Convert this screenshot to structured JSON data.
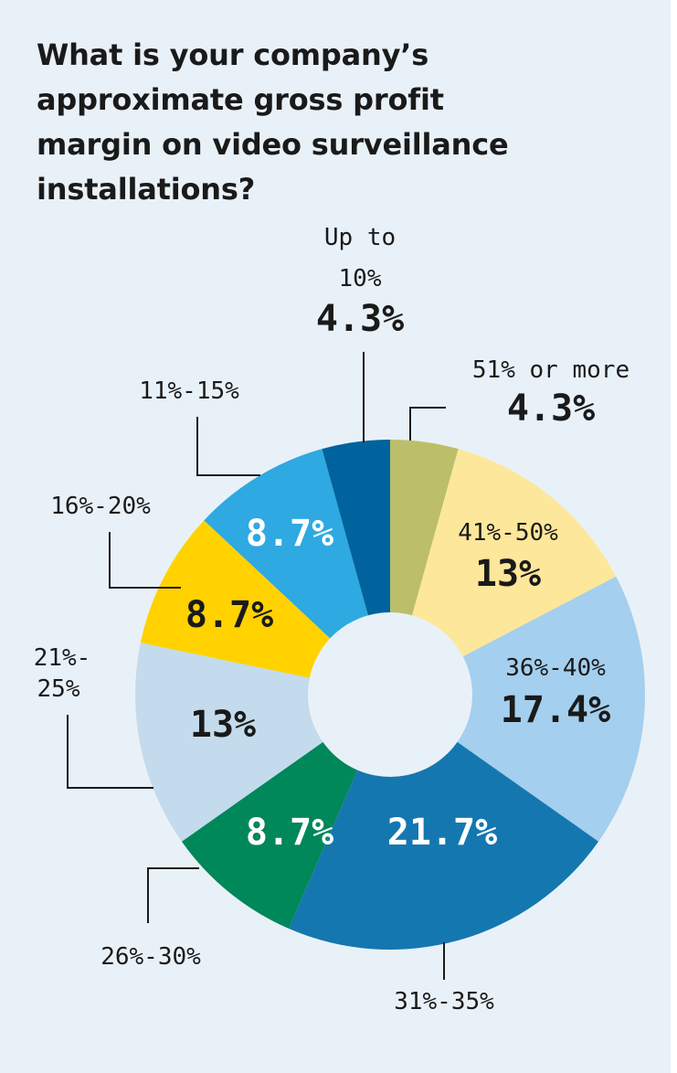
{
  "title": "What is your company’s\napproximate gross profit\nmargin on video surveillance\ninstallations?",
  "colors": {
    "background": "#e9f1f8",
    "text_dark": "#1a1a1a",
    "text_light": "#ffffff"
  },
  "chart_data": {
    "type": "pie",
    "donut": true,
    "title": "What is your company’s approximate gross profit margin on video surveillance installations?",
    "unit": "%",
    "slices": [
      {
        "label": "51% or more",
        "value": 4.3,
        "value_label": "4.3%",
        "color": "#bcbe6a"
      },
      {
        "label": "41%-50%",
        "value": 13,
        "value_label": "13%",
        "color": "#fde79a"
      },
      {
        "label": "36%-40%",
        "value": 17.4,
        "value_label": "17.4%",
        "color": "#a4cfee"
      },
      {
        "label": "31%-35%",
        "value": 21.7,
        "value_label": "21.7%",
        "color": "#1577b0"
      },
      {
        "label": "26%-30%",
        "value": 8.7,
        "value_label": "8.7%",
        "color": "#00875a"
      },
      {
        "label": "21%-25%",
        "value": 13,
        "value_label": "13%",
        "color": "#c3dbec"
      },
      {
        "label": "16%-20%",
        "value": 8.7,
        "value_label": "8.7%",
        "color": "#ffd200"
      },
      {
        "label": "11%-15%",
        "value": 8.7,
        "value_label": "8.7%",
        "color": "#2ea9e1"
      },
      {
        "label": "Up to 10%",
        "value": 4.3,
        "value_label": "4.3%",
        "color": "#00639e"
      }
    ]
  }
}
